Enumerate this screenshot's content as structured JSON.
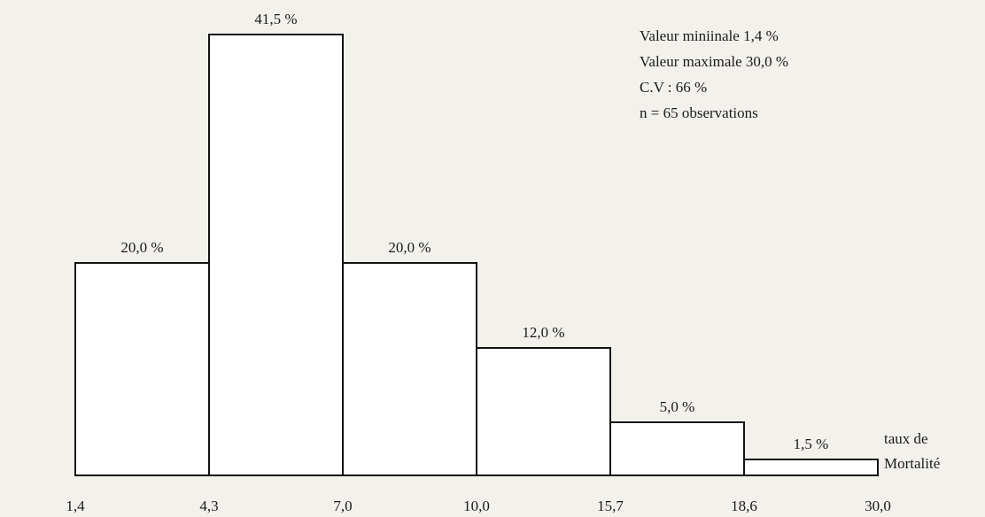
{
  "chart_data": {
    "type": "histogram",
    "bins": [
      {
        "value": 1.4,
        "label": "1,4"
      },
      {
        "value": 4.3,
        "label": "4,3"
      },
      {
        "value": 7.0,
        "label": "7,0"
      },
      {
        "value": 10.0,
        "label": "10,0"
      },
      {
        "value": 15.7,
        "label": "15,7"
      },
      {
        "value": 18.6,
        "label": "18,6"
      },
      {
        "value": 30.0,
        "label": "30,0"
      }
    ],
    "values": [
      20.0,
      41.5,
      20.0,
      12.0,
      5.0,
      1.5
    ],
    "value_labels": [
      "20,0 %",
      "41,5 %",
      "20,0 %",
      "12,0 %",
      "5,0 %",
      "1,5 %"
    ],
    "color": "#ffffff",
    "annotations": [
      "Valeur miniinale 1,4 %",
      "Valeur maximale 30,0 %",
      "C.V : 66 %",
      "n = 65 observations"
    ],
    "xlabel": [
      "taux de",
      "Mortalité"
    ]
  }
}
